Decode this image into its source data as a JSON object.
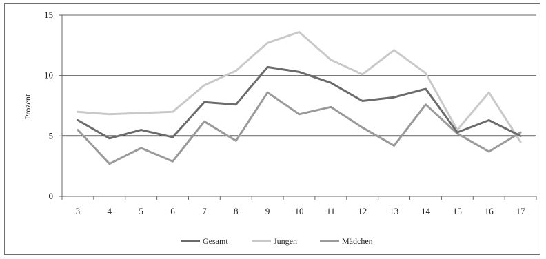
{
  "chart_data": {
    "type": "line",
    "title": "",
    "xlabel": "",
    "ylabel": "Prozent",
    "ylim": [
      0,
      15
    ],
    "yticks": [
      0,
      5,
      10,
      15
    ],
    "grid": "horizontal",
    "legend_position": "bottom",
    "categories": [
      "3",
      "4",
      "5",
      "6",
      "7",
      "8",
      "9",
      "10",
      "11",
      "12",
      "13",
      "14",
      "15",
      "16",
      "17"
    ],
    "series": [
      {
        "name": "Gesamt",
        "color": "#6b6b6b",
        "values": [
          6.3,
          4.8,
          5.5,
          4.9,
          7.8,
          7.6,
          10.7,
          10.3,
          9.4,
          7.9,
          8.2,
          8.9,
          5.3,
          6.3,
          5.0
        ]
      },
      {
        "name": "Jungen",
        "color": "#c9c9c9",
        "values": [
          7.0,
          6.8,
          6.9,
          7.0,
          9.2,
          10.4,
          12.7,
          13.6,
          11.3,
          10.1,
          12.1,
          10.2,
          5.5,
          8.6,
          4.5
        ]
      },
      {
        "name": "Mädchen",
        "color": "#9a9a9a",
        "values": [
          5.5,
          2.7,
          4.0,
          2.9,
          6.2,
          4.6,
          8.6,
          6.8,
          7.4,
          5.7,
          4.2,
          7.6,
          5.2,
          3.7,
          5.3
        ]
      }
    ]
  }
}
